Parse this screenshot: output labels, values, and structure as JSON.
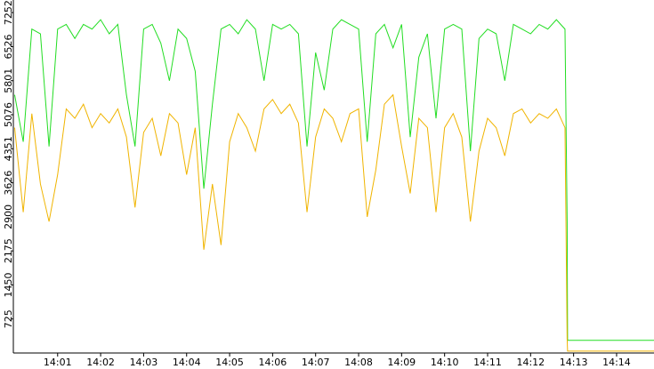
{
  "chart_data": {
    "type": "line",
    "x": [
      840.0,
      840.2,
      840.4,
      840.6,
      840.8,
      841.0,
      841.2,
      841.4,
      841.6,
      841.8,
      842.0,
      842.2,
      842.4,
      842.6,
      842.8,
      843.0,
      843.2,
      843.4,
      843.6,
      843.8,
      844.0,
      844.2,
      844.4,
      844.6,
      844.8,
      845.0,
      845.2,
      845.4,
      845.6,
      845.8,
      846.0,
      846.2,
      846.4,
      846.6,
      846.8,
      847.0,
      847.2,
      847.4,
      847.6,
      847.8,
      848.0,
      848.2,
      848.4,
      848.6,
      848.8,
      849.0,
      849.2,
      849.4,
      849.6,
      849.8,
      850.0,
      850.2,
      850.4,
      850.6,
      850.8,
      851.0,
      851.2,
      851.4,
      851.6,
      851.8,
      852.0,
      852.2,
      852.4,
      852.6,
      852.8,
      852.85,
      852.86,
      854.87
    ],
    "series": [
      {
        "color": "#22dd22",
        "values": [
          5500,
          4500,
          6900,
          6800,
          4400,
          6900,
          7000,
          6700,
          7000,
          6900,
          7100,
          6800,
          7000,
          5500,
          4400,
          6900,
          7000,
          6600,
          5800,
          6900,
          6700,
          6000,
          3500,
          5300,
          6900,
          7000,
          6800,
          7100,
          6900,
          5800,
          7000,
          6900,
          7000,
          6800,
          4400,
          6400,
          5600,
          6900,
          7100,
          7000,
          6900,
          4500,
          6800,
          7000,
          6500,
          7000,
          4600,
          6300,
          6800,
          5000,
          6900,
          7000,
          6900,
          4300,
          6700,
          6900,
          6800,
          5800,
          7000,
          6900,
          6800,
          7000,
          6900,
          7100,
          6900,
          2800,
          270,
          270
        ]
      },
      {
        "color": "#f0b400",
        "values": [
          4800,
          3000,
          5100,
          3600,
          2800,
          3800,
          5200,
          5000,
          5300,
          4800,
          5100,
          4900,
          5200,
          4600,
          3100,
          4700,
          5000,
          4200,
          5100,
          4900,
          3800,
          4800,
          2200,
          3600,
          2300,
          4500,
          5100,
          4800,
          4300,
          5200,
          5400,
          5100,
          5300,
          4900,
          3000,
          4600,
          5200,
          5000,
          4500,
          5100,
          5200,
          2900,
          3900,
          5300,
          5500,
          4400,
          3400,
          5000,
          4800,
          3000,
          4800,
          5100,
          4600,
          2800,
          4300,
          5000,
          4800,
          4200,
          5100,
          5200,
          4900,
          5100,
          5000,
          5200,
          4800,
          300,
          40,
          40
        ]
      }
    ],
    "xlim": [
      839.97,
      854.87
    ],
    "xticks": [
      {
        "value": 841,
        "label": "14:01"
      },
      {
        "value": 842,
        "label": "14:02"
      },
      {
        "value": 843,
        "label": "14:03"
      },
      {
        "value": 844,
        "label": "14:04"
      },
      {
        "value": 845,
        "label": "14:05"
      },
      {
        "value": 846,
        "label": "14:06"
      },
      {
        "value": 847,
        "label": "14:07"
      },
      {
        "value": 848,
        "label": "14:08"
      },
      {
        "value": 849,
        "label": "14:09"
      },
      {
        "value": 850,
        "label": "14:10"
      },
      {
        "value": 851,
        "label": "14:11"
      },
      {
        "value": 852,
        "label": "14:12"
      },
      {
        "value": 853,
        "label": "14:13"
      },
      {
        "value": 854,
        "label": "14:14"
      }
    ],
    "ylim": [
      0,
      7520
    ],
    "yticks": [
      725,
      1450,
      2175,
      2900,
      3626,
      4351,
      5076,
      5801,
      6526,
      7252
    ]
  }
}
